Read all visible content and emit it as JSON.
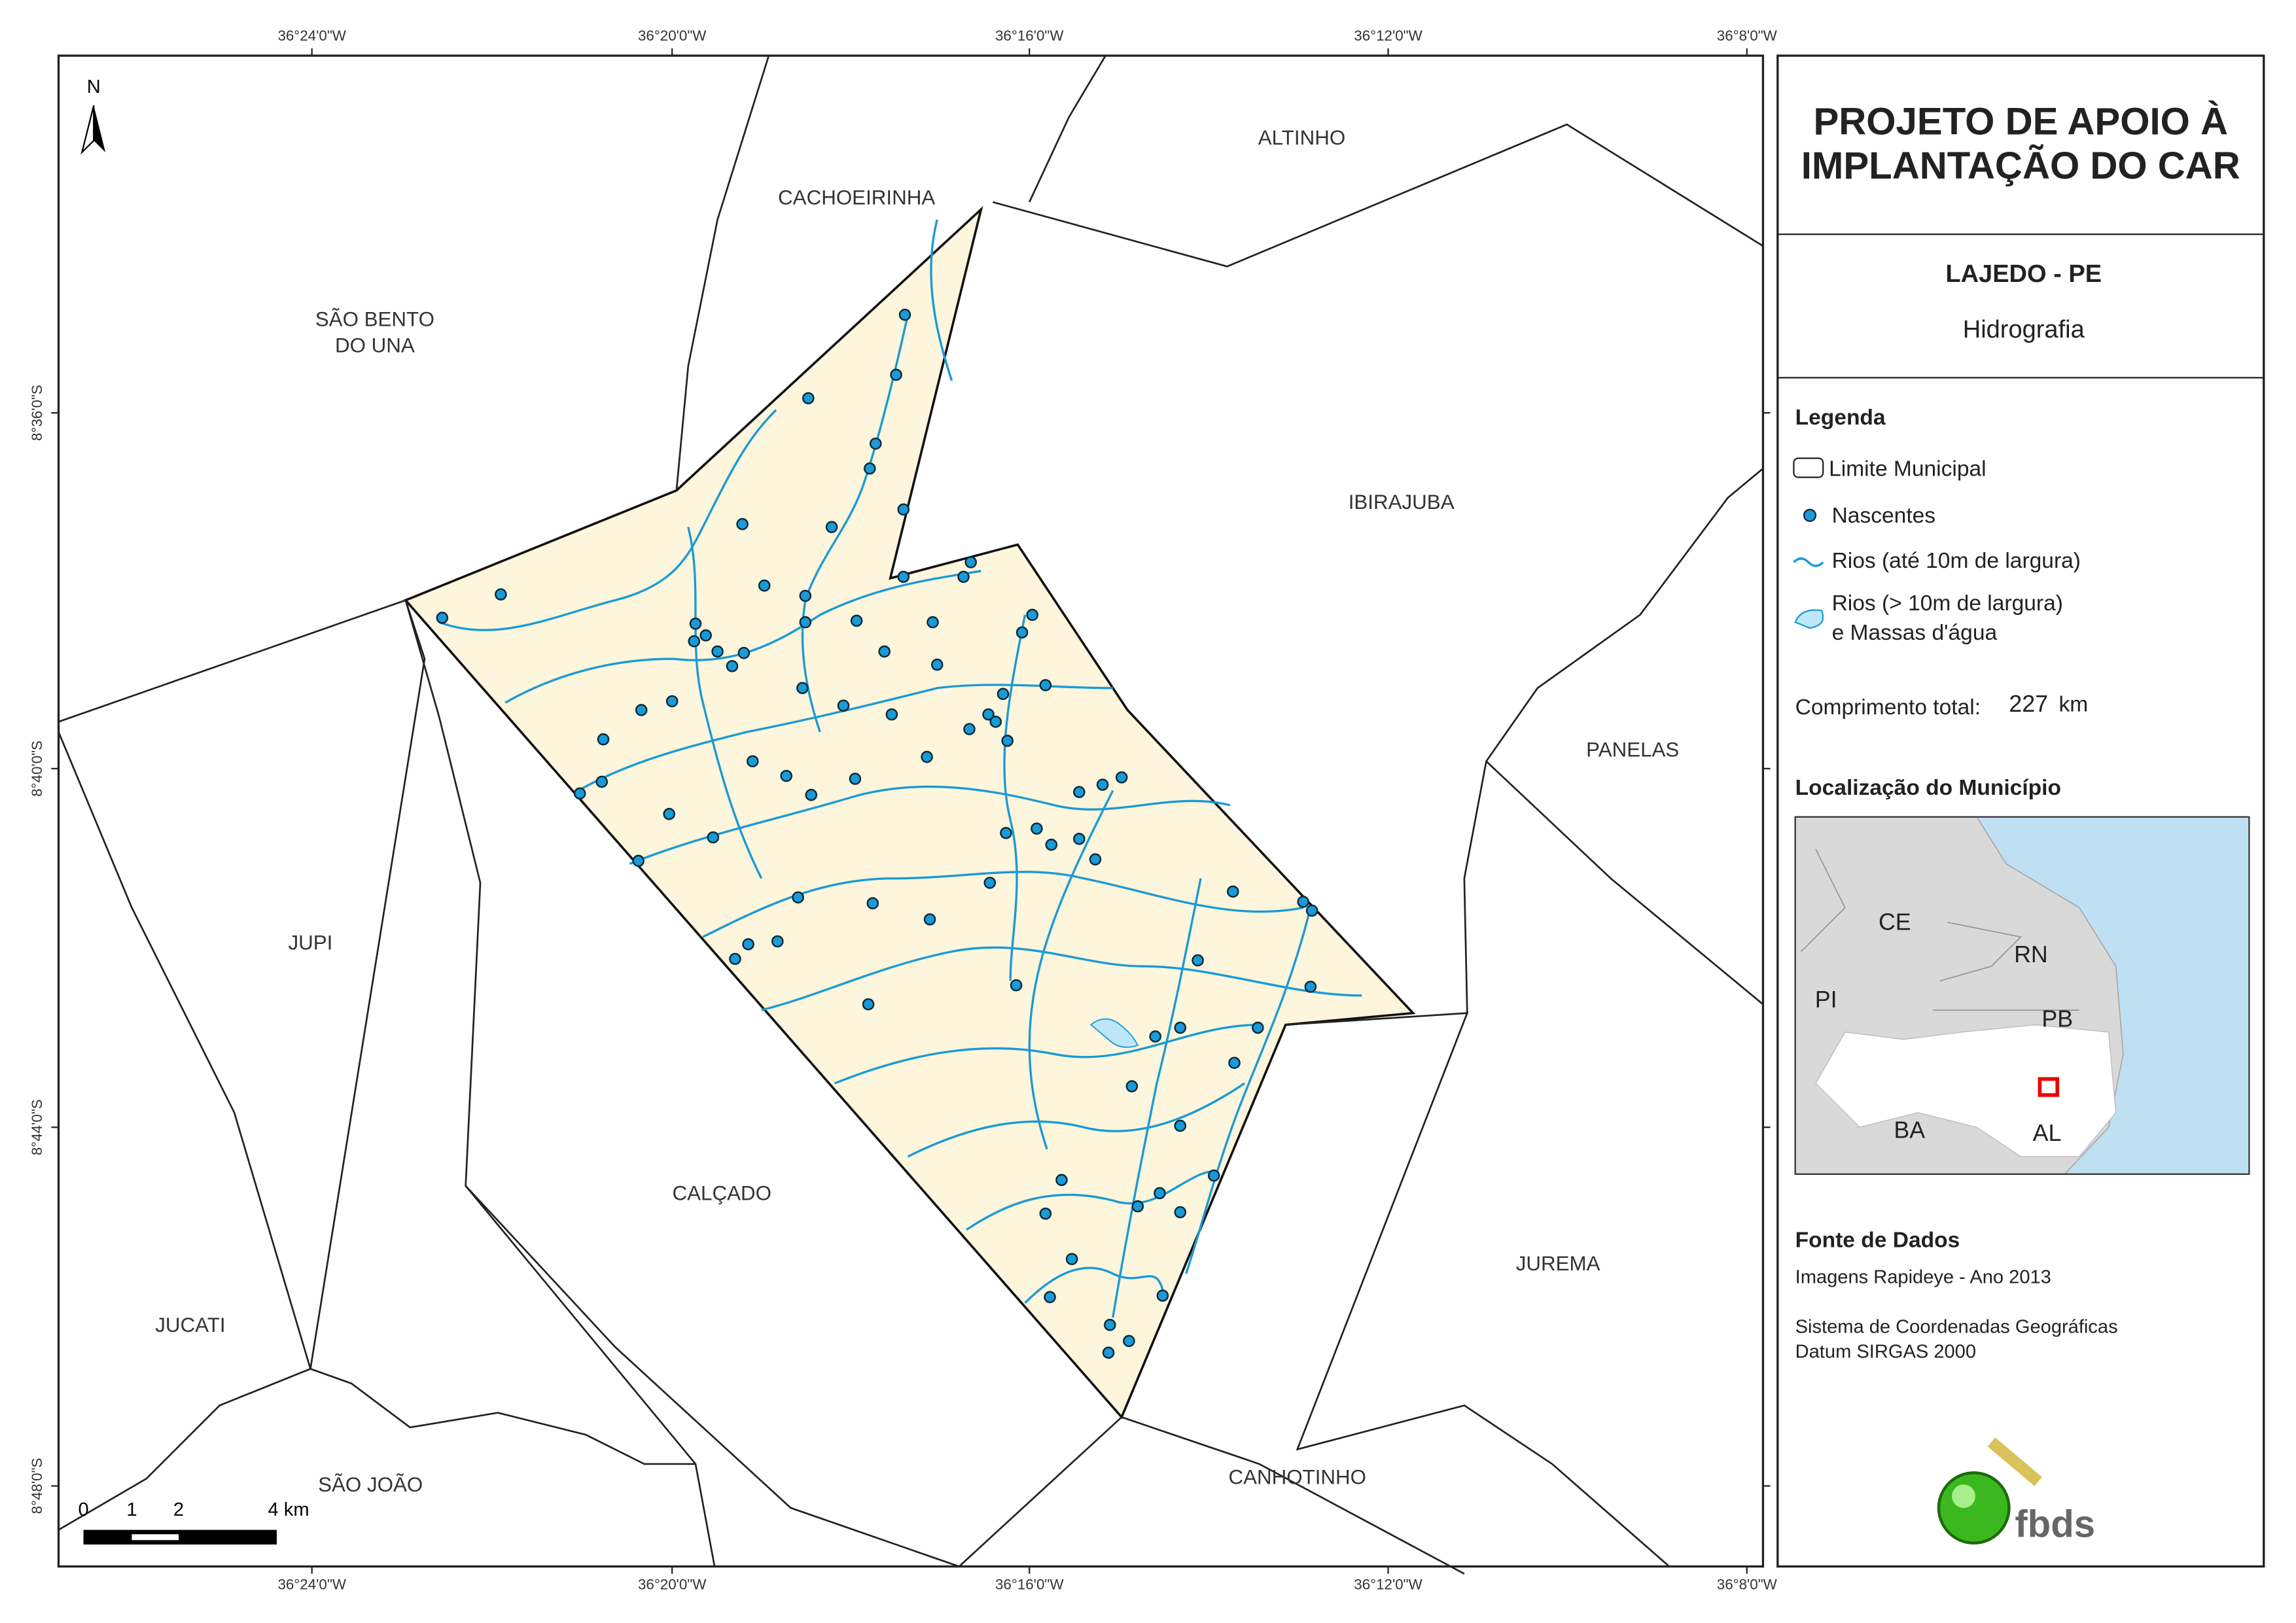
{
  "header": {
    "title_lines": [
      "PROJETO DE APOIO À",
      "IMPLANTAÇÃO DO CAR"
    ],
    "municipality": "LAJEDO - PE",
    "theme": "Hidrografia"
  },
  "legend": {
    "title": "Legenda",
    "items": [
      "Limite Municipal",
      "Nascentes",
      "Rios (até 10m de largura)",
      "Rios (> 10m de largura)",
      "e Massas d'água"
    ],
    "total_label": "Comprimento total:",
    "total_value": "227",
    "total_unit": "km"
  },
  "location": {
    "title": "Localização do Município",
    "states": [
      "CE",
      "RN",
      "PI",
      "PB",
      "BA",
      "AL"
    ]
  },
  "source": {
    "title": "Fonte de Dados",
    "lines": [
      "Imagens Rapideye - Ano 2013",
      "Sistema de Coordenadas Geográficas",
      "Datum SIRGAS 2000"
    ]
  },
  "logo": "fbds",
  "map": {
    "north": "N",
    "municipalities": [
      "ALTINHO",
      "CACHOEIRINHA",
      "SÃO BENTO",
      "DO UNA",
      "IBIRAJUBA",
      "PANELAS",
      "JUPI",
      "CALÇADO",
      "JUREMA",
      "JUCATI",
      "SÃO JOÃO",
      "CANHOTINHO"
    ],
    "lon_ticks": [
      "36°24'0\"W",
      "36°20'0\"W",
      "36°16'0\"W",
      "36°12'0\"W",
      "36°8'0\"W"
    ],
    "lat_ticks": [
      "8°36'0\"S",
      "8°40'0\"S",
      "8°44'0\"S",
      "8°48'0\"S"
    ],
    "scale": [
      "0",
      "1",
      "2",
      "4 km"
    ]
  }
}
